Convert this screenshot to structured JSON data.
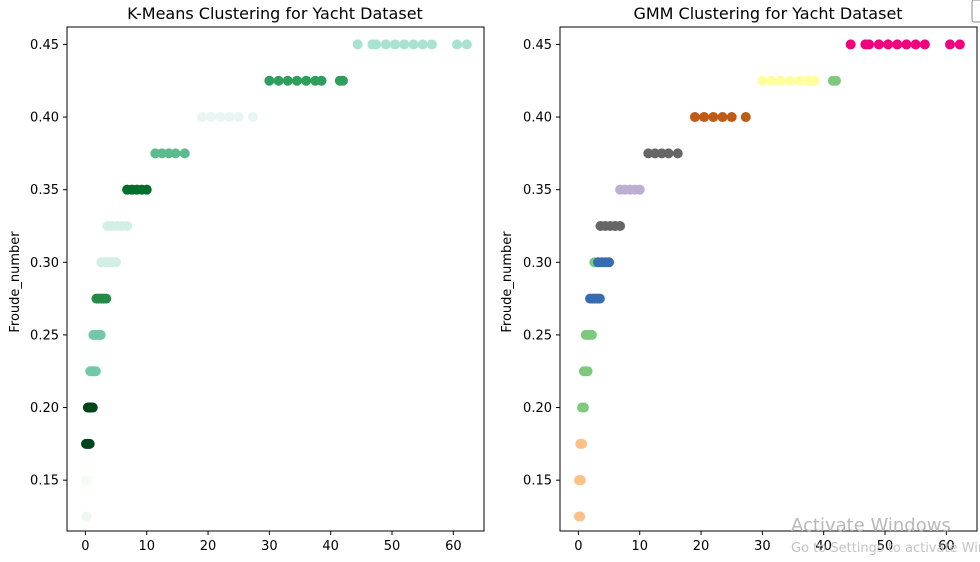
{
  "chart_data": [
    {
      "type": "scatter",
      "title": "K-Means Clustering for Yacht Dataset",
      "xlabel": "",
      "ylabel": "Froude_number",
      "xlim": [
        -3,
        65
      ],
      "ylim": [
        0.115,
        0.462
      ],
      "xticks": [
        0,
        10,
        20,
        30,
        40,
        50,
        60
      ],
      "yticks": [
        0.15,
        0.2,
        0.25,
        0.3,
        0.35,
        0.4,
        0.45
      ],
      "ytick_labels": [
        "0.15",
        "0.20",
        "0.25",
        "0.30",
        "0.35",
        "0.40",
        "0.45"
      ],
      "grid": false,
      "groups": [
        {
          "y": 0.125,
          "color": "#eef8f2",
          "x": [
            0.1,
            0.2
          ]
        },
        {
          "y": 0.15,
          "color": "#f2fbf6",
          "x": [
            0.1,
            0.3
          ]
        },
        {
          "y": 0.175,
          "color": "#00441b",
          "x": [
            0.1,
            0.3,
            0.5,
            0.7
          ]
        },
        {
          "y": 0.2,
          "color": "#00441b",
          "x": [
            0.4,
            0.6,
            0.8,
            1.0,
            1.2
          ]
        },
        {
          "y": 0.225,
          "color": "#73c8a8",
          "x": [
            0.8,
            1.1,
            1.4,
            1.7
          ]
        },
        {
          "y": 0.25,
          "color": "#73c8a8",
          "x": [
            1.3,
            1.6,
            1.9,
            2.2,
            2.5
          ]
        },
        {
          "y": 0.275,
          "color": "#238b45",
          "x": [
            1.8,
            2.2,
            2.6,
            3.0,
            3.4
          ]
        },
        {
          "y": 0.3,
          "color": "#d3eee5",
          "x": [
            2.6,
            3.2,
            3.8,
            4.4,
            5.0
          ]
        },
        {
          "y": 0.325,
          "color": "#d3eee5",
          "x": [
            3.6,
            4.4,
            5.2,
            6.0,
            6.8
          ]
        },
        {
          "y": 0.35,
          "color": "#006d2c",
          "x": [
            6.8,
            7.6,
            8.4,
            9.2,
            10.0
          ]
        },
        {
          "y": 0.375,
          "color": "#5cba8f",
          "x": [
            11.4,
            12.5,
            13.6,
            14.7,
            16.2
          ]
        },
        {
          "y": 0.4,
          "color": "#e8f6f3",
          "x": [
            19.0,
            20.5,
            22.0,
            23.5,
            25.0,
            27.3
          ]
        },
        {
          "y": 0.425,
          "color": "#2e9e5b",
          "x": [
            30.0,
            31.5,
            33.0,
            34.5,
            36.0,
            37.5,
            38.5,
            41.5,
            42.0
          ]
        },
        {
          "y": 0.45,
          "color": "#a9e2d3",
          "x": [
            44.4,
            46.8,
            47.4,
            49.0,
            50.5,
            52.0,
            53.5,
            55.0,
            56.5,
            60.6,
            62.2
          ]
        }
      ]
    },
    {
      "type": "scatter",
      "title": "GMM Clustering for Yacht Dataset",
      "xlabel": "",
      "ylabel": "Froude_number",
      "xlim": [
        -3,
        65
      ],
      "ylim": [
        0.115,
        0.462
      ],
      "xticks": [
        0,
        10,
        20,
        30,
        40,
        50,
        60
      ],
      "yticks": [
        0.15,
        0.2,
        0.25,
        0.3,
        0.35,
        0.4,
        0.45
      ],
      "ytick_labels": [
        "0.15",
        "0.20",
        "0.25",
        "0.30",
        "0.35",
        "0.40",
        "0.45"
      ],
      "grid": false,
      "groups": [
        {
          "y": 0.125,
          "color": "#fdc086",
          "x": [
            0.1,
            0.3
          ]
        },
        {
          "y": 0.15,
          "color": "#fdc086",
          "x": [
            0.1,
            0.4
          ]
        },
        {
          "y": 0.175,
          "color": "#fdc086",
          "x": [
            0.3,
            0.6
          ]
        },
        {
          "y": 0.2,
          "color": "#7fc97f",
          "x": [
            0.6,
            0.9
          ]
        },
        {
          "y": 0.225,
          "color": "#7fc97f",
          "x": [
            0.9,
            1.2,
            1.5
          ]
        },
        {
          "y": 0.25,
          "color": "#7fc97f",
          "x": [
            1.2,
            1.5,
            1.8,
            2.2
          ]
        },
        {
          "y": 0.275,
          "color": "#386cb0",
          "x": [
            1.9,
            2.3,
            2.7,
            3.1,
            3.5
          ]
        },
        {
          "y": 0.3,
          "color": "#7fc97f",
          "x": [
            2.6
          ]
        },
        {
          "y": 0.3,
          "color": "#386cb0",
          "x": [
            3.2,
            3.8,
            4.4,
            5.0
          ]
        },
        {
          "y": 0.325,
          "color": "#666666",
          "x": [
            3.6,
            4.4,
            5.2,
            6.0,
            6.8
          ]
        },
        {
          "y": 0.35,
          "color": "#beaed4",
          "x": [
            6.8,
            7.6,
            8.4,
            9.2,
            10.0
          ]
        },
        {
          "y": 0.375,
          "color": "#666666",
          "x": [
            11.4,
            12.5,
            13.6,
            14.7,
            16.2
          ]
        },
        {
          "y": 0.4,
          "color": "#bf5b17",
          "x": [
            19.0,
            20.5,
            22.0,
            23.5,
            25.0,
            27.3
          ]
        },
        {
          "y": 0.425,
          "color": "#ffff99",
          "x": [
            30.0,
            31.5,
            33.0,
            34.5,
            36.0,
            37.5,
            38.5
          ]
        },
        {
          "y": 0.425,
          "color": "#7fc97f",
          "x": [
            41.5,
            42.0
          ]
        },
        {
          "y": 0.45,
          "color": "#f0027f",
          "x": [
            44.4,
            46.8,
            47.4,
            49.0,
            50.5,
            52.0,
            53.5,
            55.0,
            56.5,
            60.6,
            62.2
          ]
        }
      ]
    }
  ],
  "watermark": {
    "line1": "Activate Windows",
    "line2": "Go to Settings to activate Windows."
  }
}
